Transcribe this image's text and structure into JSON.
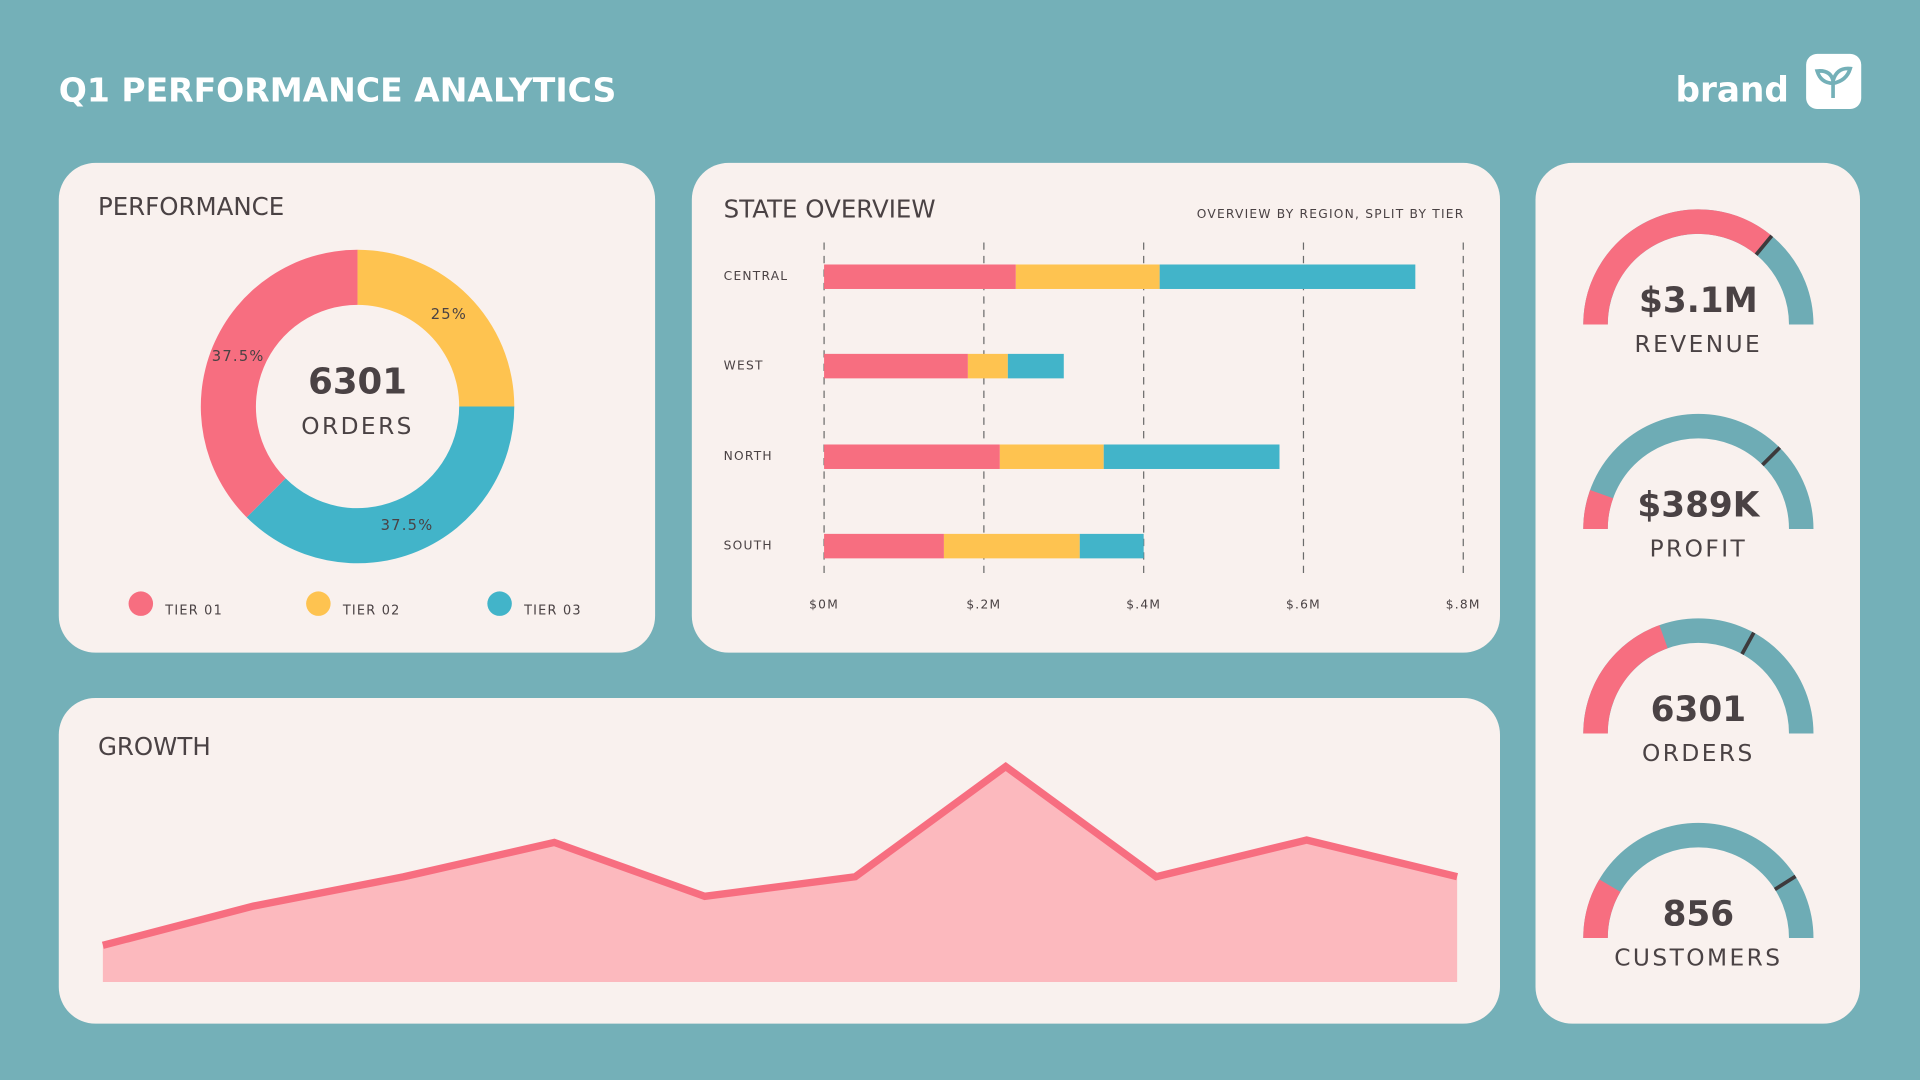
{
  "header": {
    "title": "Q1 PERFORMANCE ANALYTICS",
    "brand": "brand"
  },
  "chart_data": [
    {
      "type": "donut",
      "title": "PERFORMANCE",
      "center_value": "6301",
      "center_label": "ORDERS",
      "categories": [
        "TIER 01",
        "TIER 02",
        "TIER 03"
      ],
      "values": [
        37.5,
        25,
        37.5
      ],
      "value_labels": [
        "37.5%",
        "25%",
        "37.5%"
      ],
      "colors": [
        "#f76e80",
        "#fec350",
        "#42b4c9"
      ]
    },
    {
      "type": "stacked_bar_h",
      "title": "STATE OVERVIEW",
      "subtitle": "OVERVIEW BY REGION, SPLIT BY TIER",
      "categories": [
        "CENTRAL",
        "WEST",
        "NORTH",
        "SOUTH"
      ],
      "series": [
        {
          "color": "#f76e80",
          "values": [
            0.24,
            0.18,
            0.22,
            0.15
          ]
        },
        {
          "color": "#fec350",
          "values": [
            0.18,
            0.05,
            0.13,
            0.17
          ]
        },
        {
          "color": "#42b4c9",
          "values": [
            0.32,
            0.07,
            0.22,
            0.08
          ]
        }
      ],
      "xlim": [
        0,
        0.8
      ],
      "xticks": [
        {
          "value": 0,
          "label": "$0M"
        },
        {
          "value": 0.2,
          "label": "$.2M"
        },
        {
          "value": 0.4,
          "label": "$.4M"
        },
        {
          "value": 0.6,
          "label": "$.6M"
        },
        {
          "value": 0.8,
          "label": "$.8M"
        }
      ],
      "grid": true
    },
    {
      "type": "area",
      "title": "GROWTH",
      "categories": [
        null,
        null,
        null,
        null,
        null,
        null,
        null,
        null,
        null,
        null
      ],
      "values": [
        30,
        62,
        86,
        114,
        70,
        86,
        176,
        86,
        116,
        86
      ],
      "ylim": [
        0,
        200
      ],
      "color": "#f76e80",
      "fill": "#fcb9be"
    },
    {
      "type": "gauge",
      "value_label": "$3.1M",
      "label": "REVENUE",
      "progress": 0.72,
      "target": 0.72,
      "ylim": [
        0,
        1
      ],
      "color": "#f76e80",
      "track_color": "#6eacb5",
      "marker_color": "#3d3a3c"
    },
    {
      "type": "gauge",
      "value_label": "$389K",
      "label": "PROFIT",
      "progress": 0.11,
      "target": 0.75,
      "ylim": [
        0,
        1
      ],
      "color": "#f76e80",
      "track_color": "#6eacb5",
      "marker_color": "#3d3a3c"
    },
    {
      "type": "gauge",
      "value_label": "6301",
      "label": "ORDERS",
      "progress": 0.39,
      "target": 0.66,
      "ylim": [
        0,
        1
      ],
      "color": "#f76e80",
      "track_color": "#6eacb5",
      "marker_color": "#3d3a3c"
    },
    {
      "type": "gauge",
      "value_label": "856",
      "label": "CUSTOMERS",
      "progress": 0.17,
      "target": 0.82,
      "ylim": [
        0,
        1
      ],
      "color": "#f76e80",
      "track_color": "#6eacb5",
      "marker_color": "#3d3a3c"
    }
  ]
}
